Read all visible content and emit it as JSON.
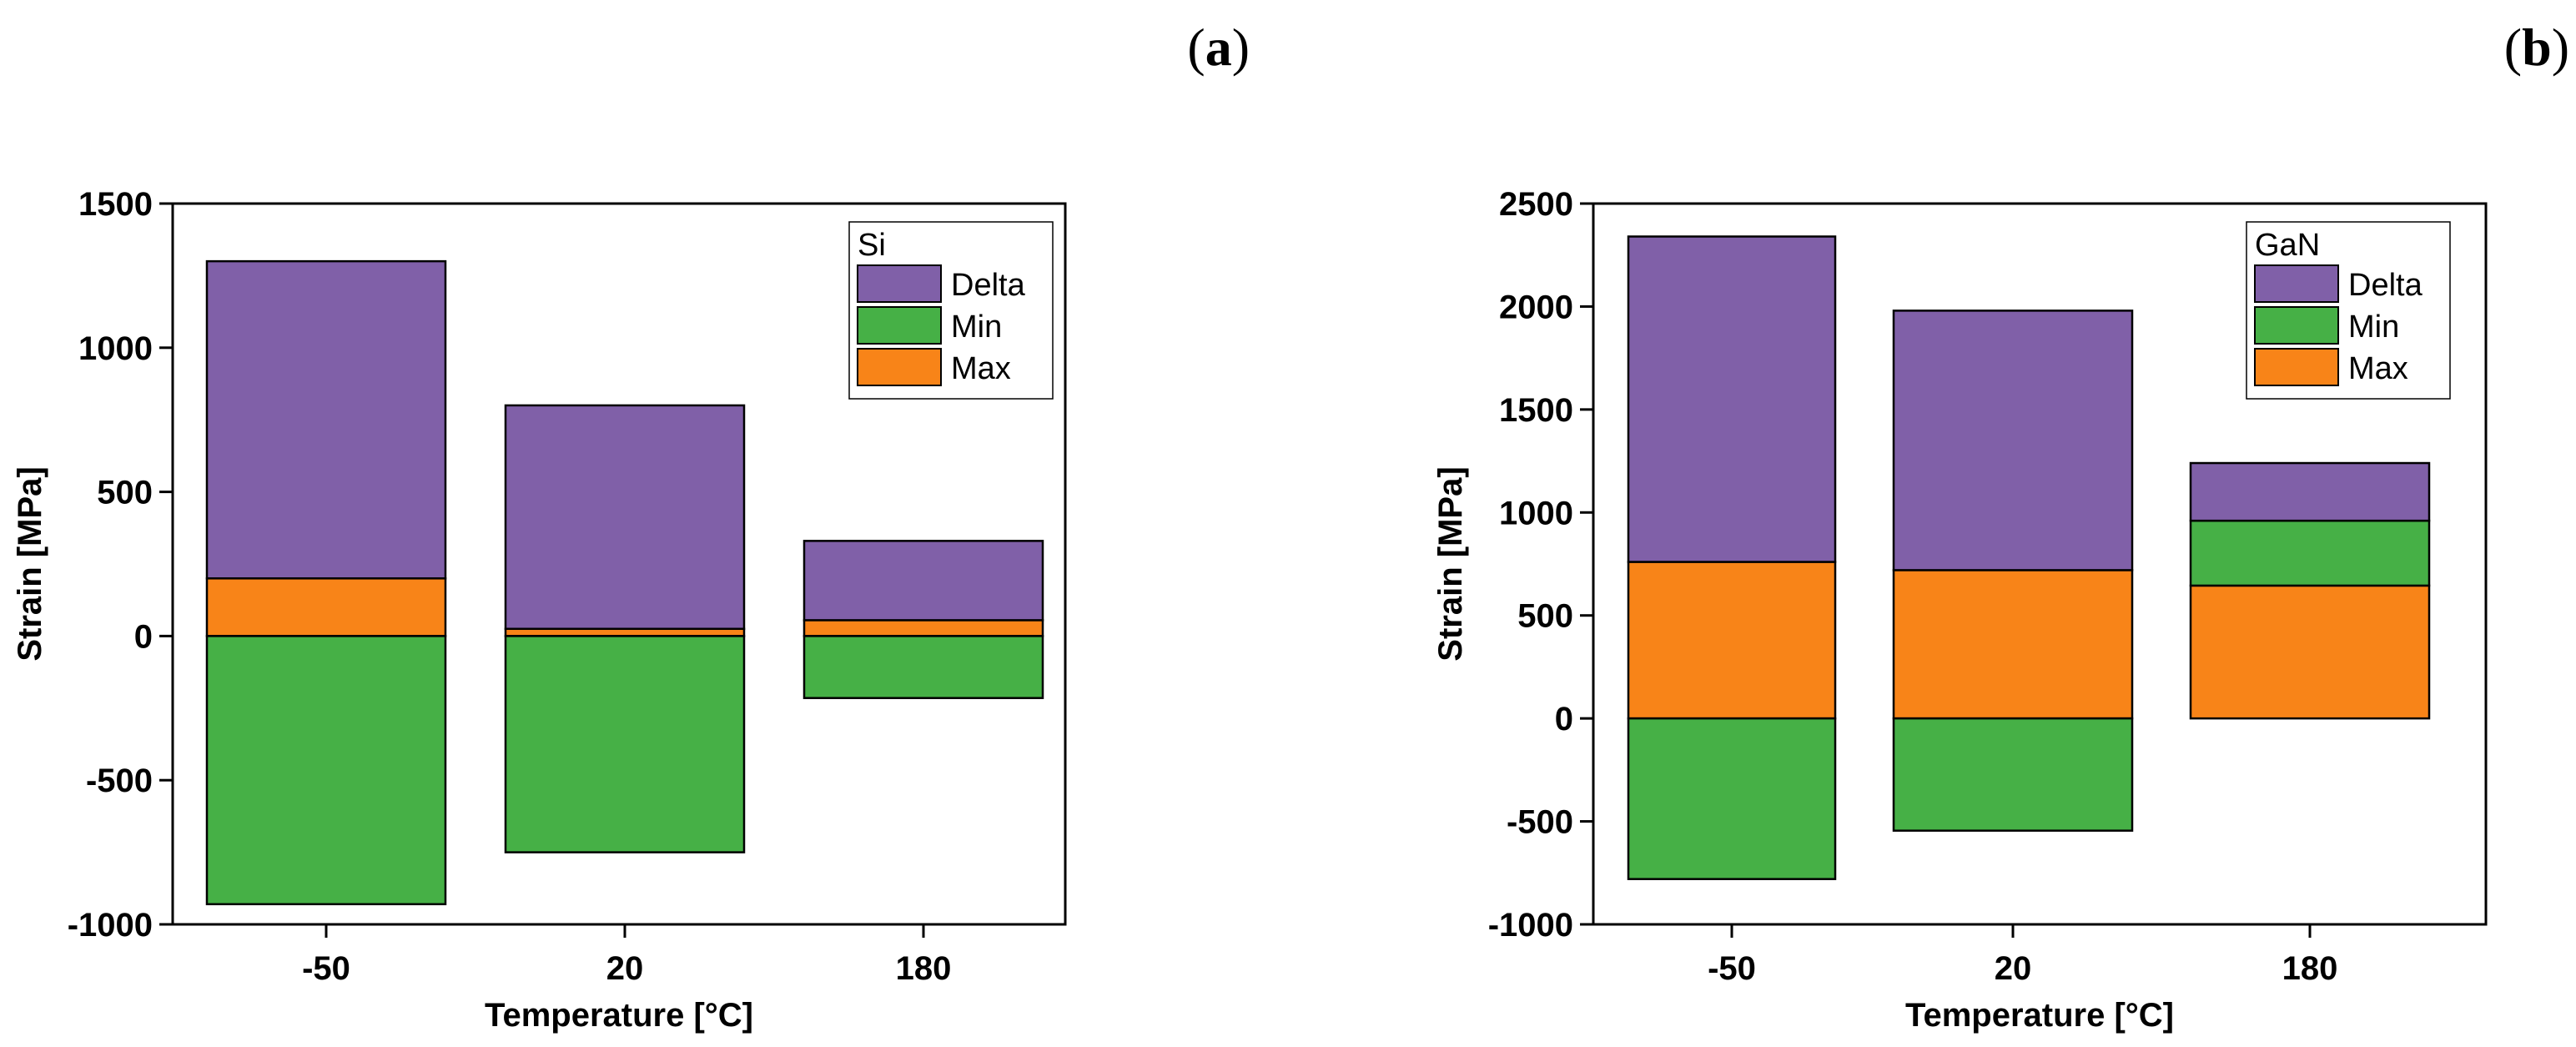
{
  "panel_labels": {
    "a": "a",
    "b": "b"
  },
  "colors": {
    "delta": "#8060a8",
    "min": "#46b046",
    "max": "#f88418",
    "stroke": "#000000"
  },
  "chart_data": [
    {
      "id": "a",
      "type": "bar",
      "stacked": true,
      "title": "",
      "xlabel": "Temperature [°C]",
      "ylabel": "Strain [MPa]",
      "categories": [
        "-50",
        "20",
        "180"
      ],
      "ylim": [
        -1000,
        1500
      ],
      "yticks": [
        -1000,
        -500,
        0,
        500,
        1000,
        1500
      ],
      "ytick_labels": [
        "-1000",
        "-500",
        "0",
        "500",
        "1000",
        "1500"
      ],
      "legend_title": "Si",
      "legend_position": "top-right",
      "series": [
        {
          "name": "Delta",
          "color_key": "delta",
          "base": [
            200,
            25,
            55
          ],
          "values": [
            1100,
            775,
            275
          ]
        },
        {
          "name": "Min",
          "color_key": "min",
          "base": [
            0,
            0,
            0
          ],
          "values": [
            -930,
            -750,
            -215
          ]
        },
        {
          "name": "Max",
          "color_key": "max",
          "base": [
            0,
            0,
            0
          ],
          "values": [
            200,
            25,
            55
          ]
        }
      ]
    },
    {
      "id": "b",
      "type": "bar",
      "stacked": true,
      "title": "",
      "xlabel": "Temperature [°C]",
      "ylabel": "Strain [MPa]",
      "categories": [
        "-50",
        "20",
        "180"
      ],
      "ylim": [
        -1000,
        2500
      ],
      "yticks": [
        -1000,
        -500,
        0,
        500,
        1000,
        1500,
        2000,
        2500
      ],
      "ytick_labels": [
        "-1000",
        "-500",
        "0",
        "500",
        "1000",
        "1500",
        "2000",
        "2500"
      ],
      "legend_title": "GaN",
      "legend_position": "top-right",
      "series": [
        {
          "name": "Delta",
          "color_key": "delta",
          "base": [
            760,
            720,
            960
          ],
          "values": [
            1580,
            1260,
            280
          ]
        },
        {
          "name": "Min",
          "color_key": "min",
          "base": [
            0,
            0,
            645
          ],
          "values": [
            -780,
            -545,
            315
          ]
        },
        {
          "name": "Max",
          "color_key": "max",
          "base": [
            0,
            0,
            0
          ],
          "values": [
            760,
            720,
            645
          ]
        }
      ]
    }
  ]
}
